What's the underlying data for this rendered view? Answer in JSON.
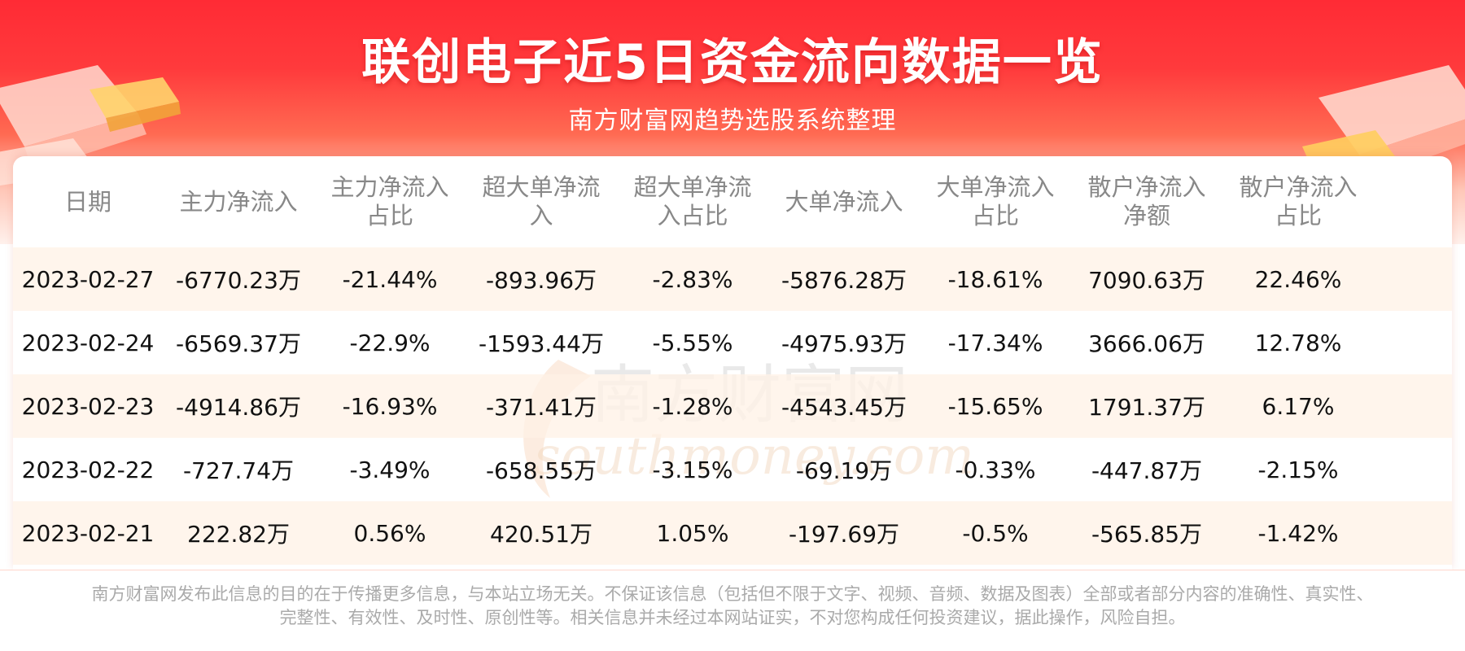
{
  "header": {
    "title": "联创电子近5日资金流向数据一览",
    "subtitle": "南方财富网趋势选股系统整理"
  },
  "table": {
    "columns": [
      {
        "line1": "日期",
        "line2": ""
      },
      {
        "line1": "主力净流入",
        "line2": ""
      },
      {
        "line1": "主力净流入",
        "line2": "占比"
      },
      {
        "line1": "超大单净流",
        "line2": "入"
      },
      {
        "line1": "超大单净流",
        "line2": "入占比"
      },
      {
        "line1": "大单净流入",
        "line2": ""
      },
      {
        "line1": "大单净流入",
        "line2": "占比"
      },
      {
        "line1": "散户净流入",
        "line2": "净额"
      },
      {
        "line1": "散户净流入",
        "line2": "占比"
      }
    ],
    "rows": [
      [
        "2023-02-27",
        "-6770.23万",
        "-21.44%",
        "-893.96万",
        "-2.83%",
        "-5876.28万",
        "-18.61%",
        "7090.63万",
        "22.46%"
      ],
      [
        "2023-02-24",
        "-6569.37万",
        "-22.9%",
        "-1593.44万",
        "-5.55%",
        "-4975.93万",
        "-17.34%",
        "3666.06万",
        "12.78%"
      ],
      [
        "2023-02-23",
        "-4914.86万",
        "-16.93%",
        "-371.41万",
        "-1.28%",
        "-4543.45万",
        "-15.65%",
        "1791.37万",
        "6.17%"
      ],
      [
        "2023-02-22",
        "-727.74万",
        "-3.49%",
        "-658.55万",
        "-3.15%",
        "-69.19万",
        "-0.33%",
        "-447.87万",
        "-2.15%"
      ],
      [
        "2023-02-21",
        "222.82万",
        "0.56%",
        "420.51万",
        "1.05%",
        "-197.69万",
        "-0.5%",
        "-565.85万",
        "-1.42%"
      ]
    ]
  },
  "watermark": {
    "text_cn": "南方财富网",
    "text_en": "southmoney.com"
  },
  "disclaimer": {
    "line1": "南方财富网发布此信息的目的在于传播更多信息，与本站立场无关。不保证该信息（包括但不限于文字、视频、音频、数据及图表）全部或者部分内容的准确性、真实性、",
    "line2": "完整性、有效性、及时性、原创性等。相关信息并未经过本网站证实，不对您构成任何投资建议，据此操作，风险自担。"
  },
  "colors": {
    "banner_red": "#ff2b35",
    "stripe": "#fff2e6",
    "header_text": "#888888",
    "cell_text": "#111111"
  }
}
